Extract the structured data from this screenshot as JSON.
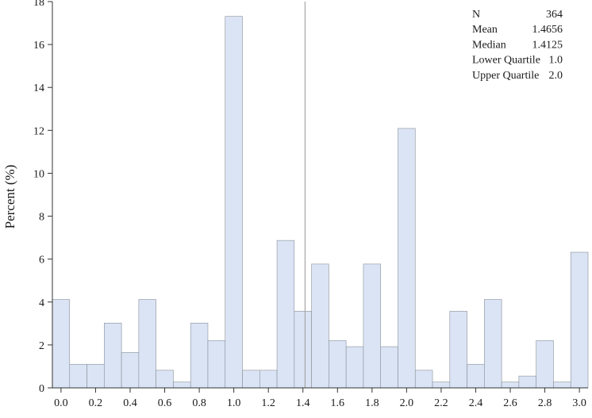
{
  "chart_data": {
    "type": "bar",
    "subtype": "histogram",
    "ylabel": "Percent (%)",
    "xlabel": "",
    "xlim": [
      -0.05,
      3.05
    ],
    "ylim": [
      0,
      18
    ],
    "bin_width": 0.1,
    "x_ticks": [
      "0.0",
      "0.2",
      "0.4",
      "0.6",
      "0.8",
      "1.0",
      "1.2",
      "1.4",
      "1.6",
      "1.8",
      "2.0",
      "2.2",
      "2.4",
      "2.6",
      "2.8",
      "3.0"
    ],
    "y_ticks": [
      "0",
      "2",
      "4",
      "6",
      "8",
      "10",
      "12",
      "14",
      "16",
      "18"
    ],
    "bins": [
      0.0,
      0.1,
      0.2,
      0.3,
      0.4,
      0.5,
      0.6,
      0.7,
      0.8,
      0.9,
      1.0,
      1.1,
      1.2,
      1.3,
      1.4,
      1.5,
      1.6,
      1.7,
      1.8,
      1.9,
      2.0,
      2.1,
      2.2,
      2.3,
      2.4,
      2.5,
      2.6,
      2.7,
      2.8,
      2.9,
      3.0
    ],
    "values": [
      4.12,
      1.1,
      1.1,
      3.02,
      1.65,
      4.12,
      0.82,
      0.27,
      3.02,
      2.2,
      17.31,
      0.82,
      0.82,
      6.87,
      3.57,
      5.77,
      2.2,
      1.92,
      5.77,
      1.92,
      12.09,
      0.82,
      0.27,
      3.57,
      1.1,
      4.12,
      0.27,
      0.55,
      2.2,
      0.27,
      6.32
    ],
    "median_line": 1.4125,
    "grid": false,
    "colors": {
      "bar_fill": "#dae4f4",
      "bar_stroke": "#8a8f99",
      "axis": "#333333",
      "median_line": "#a6a6a6"
    },
    "stats": [
      {
        "label": "N",
        "value": "364"
      },
      {
        "label": "Mean",
        "value": "1.4656"
      },
      {
        "label": "Median",
        "value": "1.4125"
      },
      {
        "label": "Lower Quartile",
        "value": "1.0"
      },
      {
        "label": "Upper Quartile",
        "value": "2.0"
      }
    ]
  }
}
